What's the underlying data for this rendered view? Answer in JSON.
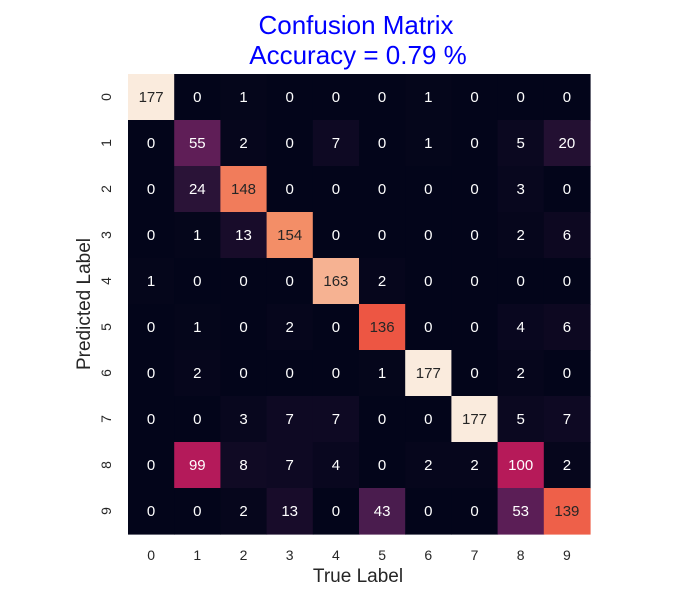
{
  "chart_data": {
    "type": "heatmap",
    "title_lines": [
      "Confusion Matrix",
      "Accuracy = 0.79 %"
    ],
    "xlabel": "True Label",
    "ylabel": "Predicted Label",
    "x_categories": [
      "0",
      "1",
      "2",
      "3",
      "4",
      "5",
      "6",
      "7",
      "8",
      "9"
    ],
    "y_categories": [
      "0",
      "1",
      "2",
      "3",
      "4",
      "5",
      "6",
      "7",
      "8",
      "9"
    ],
    "values": [
      [
        177,
        0,
        1,
        0,
        0,
        0,
        1,
        0,
        0,
        0
      ],
      [
        0,
        55,
        2,
        0,
        7,
        0,
        1,
        0,
        5,
        20
      ],
      [
        0,
        24,
        148,
        0,
        0,
        0,
        0,
        0,
        3,
        0
      ],
      [
        0,
        1,
        13,
        154,
        0,
        0,
        0,
        0,
        2,
        6
      ],
      [
        1,
        0,
        0,
        0,
        163,
        2,
        0,
        0,
        0,
        0
      ],
      [
        0,
        1,
        0,
        2,
        0,
        136,
        0,
        0,
        4,
        6
      ],
      [
        0,
        2,
        0,
        0,
        0,
        1,
        177,
        0,
        2,
        0
      ],
      [
        0,
        0,
        3,
        7,
        7,
        0,
        0,
        177,
        5,
        7
      ],
      [
        0,
        99,
        8,
        7,
        4,
        0,
        2,
        2,
        100,
        2
      ],
      [
        0,
        0,
        2,
        13,
        0,
        43,
        0,
        0,
        53,
        139
      ]
    ],
    "value_range": [
      0,
      177
    ],
    "colormap": "rocket",
    "title_color": "#0000ff",
    "grid": false,
    "colorbar": false
  }
}
